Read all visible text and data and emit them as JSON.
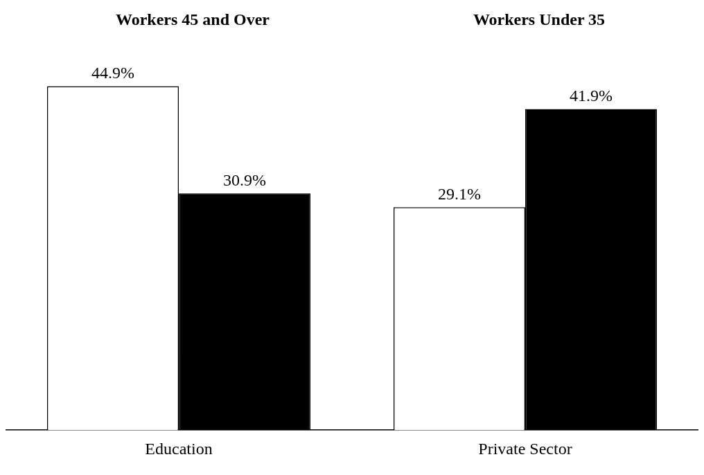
{
  "chart_data": {
    "type": "bar",
    "categories": [
      "Education",
      "Private Sector"
    ],
    "series": [
      {
        "color": "#ffffff",
        "values": [
          44.9,
          29.1
        ],
        "value_labels": [
          "44.9%",
          "29.1%"
        ]
      },
      {
        "color": "#000000",
        "values": [
          30.9,
          41.9
        ],
        "value_labels": [
          "30.9%",
          "41.9%"
        ]
      }
    ],
    "annotations": [
      "Workers 45 and Over",
      "Workers Under 35"
    ],
    "grid": false
  }
}
